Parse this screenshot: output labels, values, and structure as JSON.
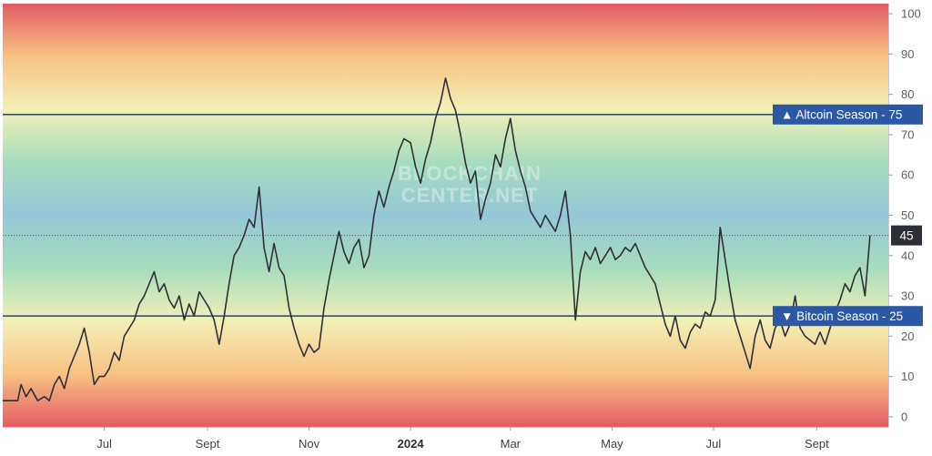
{
  "watermark": [
    "BLOCKCHAIN",
    "CENTER.NET"
  ],
  "colors": {
    "line": "#2f3036",
    "threshold_line": "#2d4f96",
    "badge_fill": "#2b58a4",
    "current_badge_fill": "#2d2f36",
    "gradient_stops": [
      "#e25c63",
      "#f8c283",
      "#f2f0b6",
      "#a6dcbe",
      "#95c8d6",
      "#a6dcbe",
      "#f2f0b6",
      "#f8c283",
      "#e25c63"
    ]
  },
  "chart_data": {
    "type": "line",
    "title": "",
    "xlabel": "",
    "ylabel": "",
    "ylim": [
      -2.5,
      102.5
    ],
    "y_ticks": [
      0,
      10,
      20,
      30,
      40,
      50,
      60,
      70,
      80,
      90,
      100
    ],
    "x_range": [
      "2023-05-01",
      "2024-10-14"
    ],
    "x_ticks": [
      {
        "date": "2023-07-01",
        "label": "Jul",
        "bold": false
      },
      {
        "date": "2023-09-01",
        "label": "Sept",
        "bold": false
      },
      {
        "date": "2023-11-01",
        "label": "Nov",
        "bold": false
      },
      {
        "date": "2024-01-01",
        "label": "2024",
        "bold": true
      },
      {
        "date": "2024-03-01",
        "label": "Mar",
        "bold": false
      },
      {
        "date": "2024-05-01",
        "label": "May",
        "bold": false
      },
      {
        "date": "2024-07-01",
        "label": "Jul",
        "bold": false
      },
      {
        "date": "2024-09-01",
        "label": "Sept",
        "bold": false
      }
    ],
    "grid": false,
    "legend": "none",
    "thresholds": [
      {
        "name": "Altcoin Season",
        "value": 75,
        "symbol": "▲"
      },
      {
        "name": "Bitcoin Season",
        "value": 25,
        "symbol": "▼"
      }
    ],
    "current_value": 45,
    "series": [
      {
        "values": [
          [
            "2023-05-01",
            4
          ],
          [
            "2023-05-10",
            4
          ],
          [
            "2023-05-12",
            8
          ],
          [
            "2023-05-15",
            5
          ],
          [
            "2023-05-18",
            7
          ],
          [
            "2023-05-22",
            4
          ],
          [
            "2023-05-26",
            5
          ],
          [
            "2023-05-29",
            4
          ],
          [
            "2023-06-01",
            8
          ],
          [
            "2023-06-04",
            10
          ],
          [
            "2023-06-07",
            7
          ],
          [
            "2023-06-10",
            12
          ],
          [
            "2023-06-13",
            15
          ],
          [
            "2023-06-16",
            18
          ],
          [
            "2023-06-19",
            22
          ],
          [
            "2023-06-22",
            16
          ],
          [
            "2023-06-25",
            8
          ],
          [
            "2023-06-28",
            10
          ],
          [
            "2023-07-01",
            10
          ],
          [
            "2023-07-04",
            12
          ],
          [
            "2023-07-07",
            16
          ],
          [
            "2023-07-10",
            14
          ],
          [
            "2023-07-13",
            20
          ],
          [
            "2023-07-16",
            22
          ],
          [
            "2023-07-19",
            24
          ],
          [
            "2023-07-22",
            28
          ],
          [
            "2023-07-25",
            30
          ],
          [
            "2023-07-28",
            33
          ],
          [
            "2023-07-31",
            36
          ],
          [
            "2023-08-03",
            31
          ],
          [
            "2023-08-06",
            33
          ],
          [
            "2023-08-09",
            29
          ],
          [
            "2023-08-12",
            27
          ],
          [
            "2023-08-15",
            30
          ],
          [
            "2023-08-18",
            24
          ],
          [
            "2023-08-21",
            28
          ],
          [
            "2023-08-24",
            25
          ],
          [
            "2023-08-27",
            31
          ],
          [
            "2023-08-30",
            29
          ],
          [
            "2023-09-02",
            27
          ],
          [
            "2023-09-05",
            24
          ],
          [
            "2023-09-08",
            18
          ],
          [
            "2023-09-11",
            25
          ],
          [
            "2023-09-14",
            33
          ],
          [
            "2023-09-17",
            40
          ],
          [
            "2023-09-20",
            42
          ],
          [
            "2023-09-23",
            45
          ],
          [
            "2023-09-26",
            49
          ],
          [
            "2023-09-29",
            47
          ],
          [
            "2023-10-02",
            57
          ],
          [
            "2023-10-05",
            42
          ],
          [
            "2023-10-08",
            36
          ],
          [
            "2023-10-11",
            43
          ],
          [
            "2023-10-14",
            37
          ],
          [
            "2023-10-17",
            35
          ],
          [
            "2023-10-20",
            27
          ],
          [
            "2023-10-23",
            22
          ],
          [
            "2023-10-26",
            18
          ],
          [
            "2023-10-29",
            15
          ],
          [
            "2023-11-01",
            18
          ],
          [
            "2023-11-04",
            16
          ],
          [
            "2023-11-07",
            17
          ],
          [
            "2023-11-10",
            27
          ],
          [
            "2023-11-13",
            34
          ],
          [
            "2023-11-16",
            40
          ],
          [
            "2023-11-19",
            46
          ],
          [
            "2023-11-22",
            41
          ],
          [
            "2023-11-25",
            38
          ],
          [
            "2023-11-28",
            42
          ],
          [
            "2023-12-01",
            44
          ],
          [
            "2023-12-04",
            37
          ],
          [
            "2023-12-07",
            40
          ],
          [
            "2023-12-10",
            50
          ],
          [
            "2023-12-13",
            56
          ],
          [
            "2023-12-16",
            52
          ],
          [
            "2023-12-19",
            57
          ],
          [
            "2023-12-22",
            61
          ],
          [
            "2023-12-25",
            66
          ],
          [
            "2023-12-28",
            69
          ],
          [
            "2024-01-01",
            68
          ],
          [
            "2024-01-04",
            62
          ],
          [
            "2024-01-07",
            58
          ],
          [
            "2024-01-10",
            64
          ],
          [
            "2024-01-13",
            68
          ],
          [
            "2024-01-16",
            74
          ],
          [
            "2024-01-19",
            78
          ],
          [
            "2024-01-22",
            84
          ],
          [
            "2024-01-25",
            79
          ],
          [
            "2024-01-28",
            76
          ],
          [
            "2024-01-31",
            70
          ],
          [
            "2024-02-03",
            63
          ],
          [
            "2024-02-06",
            58
          ],
          [
            "2024-02-09",
            61
          ],
          [
            "2024-02-12",
            49
          ],
          [
            "2024-02-15",
            54
          ],
          [
            "2024-02-18",
            58
          ],
          [
            "2024-02-21",
            65
          ],
          [
            "2024-02-24",
            62
          ],
          [
            "2024-02-27",
            69
          ],
          [
            "2024-03-01",
            74
          ],
          [
            "2024-03-04",
            66
          ],
          [
            "2024-03-07",
            61
          ],
          [
            "2024-03-10",
            57
          ],
          [
            "2024-03-13",
            51
          ],
          [
            "2024-03-16",
            49
          ],
          [
            "2024-03-19",
            47
          ],
          [
            "2024-03-22",
            50
          ],
          [
            "2024-03-25",
            48
          ],
          [
            "2024-03-28",
            46
          ],
          [
            "2024-03-31",
            50
          ],
          [
            "2024-04-03",
            56
          ],
          [
            "2024-04-06",
            45
          ],
          [
            "2024-04-09",
            24
          ],
          [
            "2024-04-12",
            36
          ],
          [
            "2024-04-15",
            41
          ],
          [
            "2024-04-18",
            39
          ],
          [
            "2024-04-21",
            42
          ],
          [
            "2024-04-24",
            38
          ],
          [
            "2024-04-27",
            40
          ],
          [
            "2024-04-30",
            42
          ],
          [
            "2024-05-03",
            39
          ],
          [
            "2024-05-06",
            40
          ],
          [
            "2024-05-09",
            42
          ],
          [
            "2024-05-12",
            41
          ],
          [
            "2024-05-15",
            43
          ],
          [
            "2024-05-18",
            40
          ],
          [
            "2024-05-21",
            37
          ],
          [
            "2024-05-24",
            35
          ],
          [
            "2024-05-27",
            33
          ],
          [
            "2024-05-30",
            28
          ],
          [
            "2024-06-02",
            23
          ],
          [
            "2024-06-05",
            20
          ],
          [
            "2024-06-08",
            25
          ],
          [
            "2024-06-11",
            19
          ],
          [
            "2024-06-14",
            17
          ],
          [
            "2024-06-17",
            21
          ],
          [
            "2024-06-20",
            23
          ],
          [
            "2024-06-23",
            22
          ],
          [
            "2024-06-26",
            26
          ],
          [
            "2024-06-29",
            25
          ],
          [
            "2024-07-02",
            29
          ],
          [
            "2024-07-05",
            47
          ],
          [
            "2024-07-08",
            39
          ],
          [
            "2024-07-11",
            31
          ],
          [
            "2024-07-14",
            24
          ],
          [
            "2024-07-17",
            20
          ],
          [
            "2024-07-20",
            16
          ],
          [
            "2024-07-23",
            12
          ],
          [
            "2024-07-26",
            20
          ],
          [
            "2024-07-29",
            24
          ],
          [
            "2024-08-01",
            19
          ],
          [
            "2024-08-04",
            17
          ],
          [
            "2024-08-07",
            22
          ],
          [
            "2024-08-10",
            24
          ],
          [
            "2024-08-13",
            20
          ],
          [
            "2024-08-16",
            23
          ],
          [
            "2024-08-19",
            30
          ],
          [
            "2024-08-22",
            22
          ],
          [
            "2024-08-25",
            20
          ],
          [
            "2024-08-28",
            19
          ],
          [
            "2024-08-31",
            18
          ],
          [
            "2024-09-03",
            21
          ],
          [
            "2024-09-06",
            18
          ],
          [
            "2024-09-09",
            22
          ],
          [
            "2024-09-12",
            26
          ],
          [
            "2024-09-15",
            29
          ],
          [
            "2024-09-18",
            33
          ],
          [
            "2024-09-21",
            31
          ],
          [
            "2024-09-24",
            35
          ],
          [
            "2024-09-27",
            37
          ],
          [
            "2024-09-30",
            30
          ],
          [
            "2024-10-02",
            40
          ],
          [
            "2024-10-03",
            45
          ]
        ]
      }
    ]
  }
}
